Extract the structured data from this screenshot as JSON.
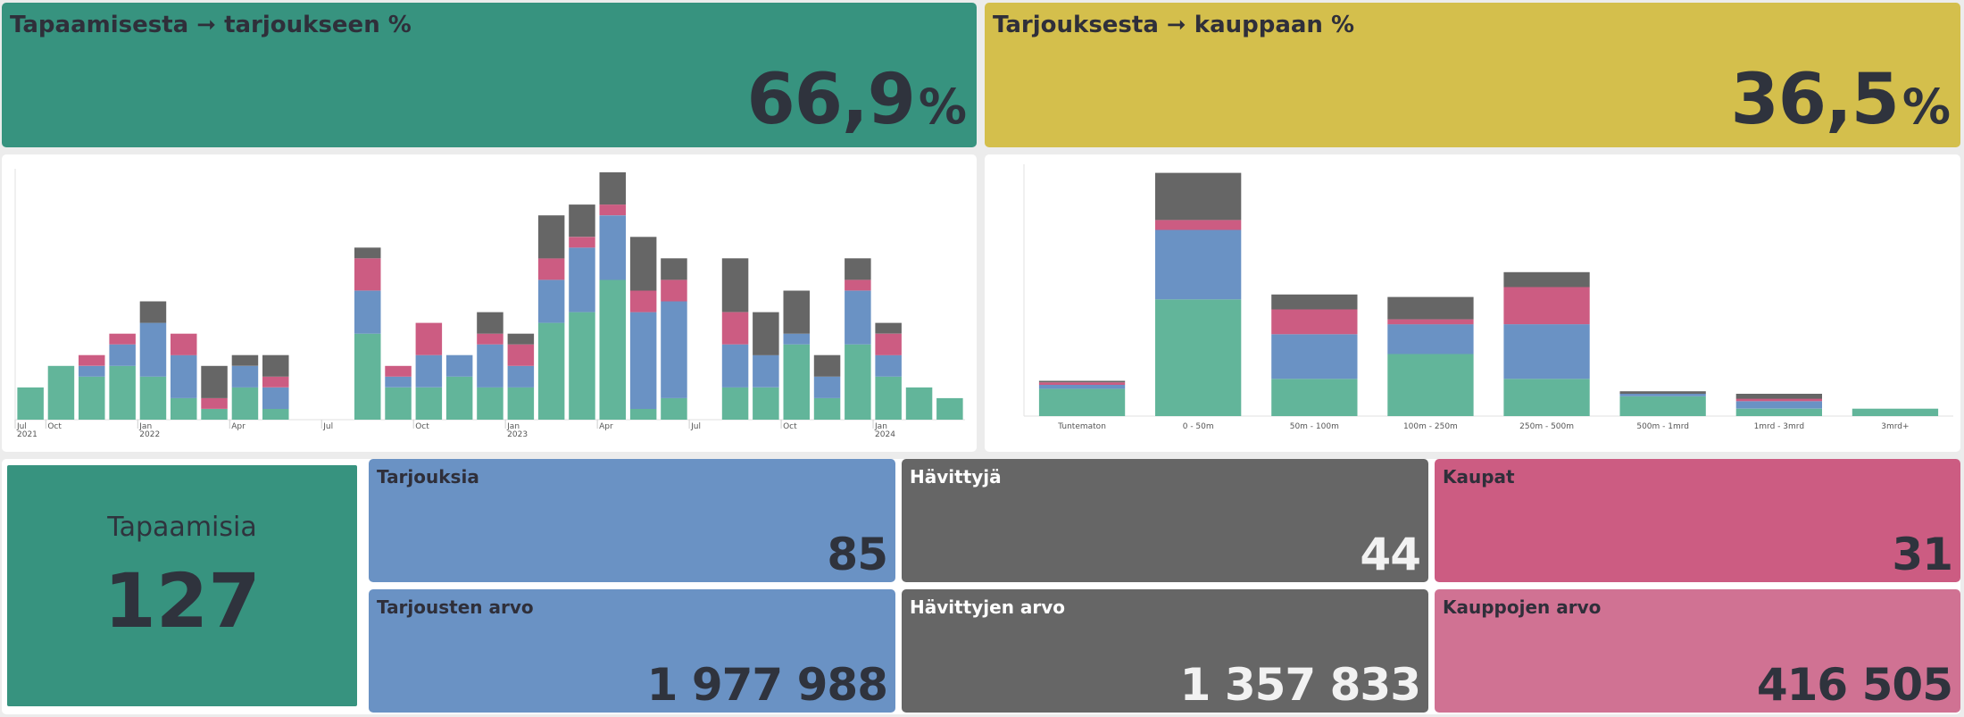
{
  "kpis": {
    "meeting_to_offer": {
      "title": "Tapaamisesta ➞ tarjoukseen %",
      "value": "66,9",
      "unit": "%",
      "color": "#37937f"
    },
    "offer_to_deal": {
      "title": "Tarjouksesta ➞ kauppaan %",
      "value": "36,5",
      "unit": "%",
      "color": "#d4bf4c"
    },
    "meetings": {
      "title": "Tapaamisia",
      "value": "127",
      "color": "#37937f"
    },
    "offers": {
      "title": "Tarjouksia",
      "value": "85",
      "color": "#6a92c4"
    },
    "lost": {
      "title": "Hävittyjä",
      "value": "44",
      "color": "#666666"
    },
    "deals": {
      "title": "Kaupat",
      "value": "31",
      "color": "#cc5c82"
    },
    "offers_value": {
      "title": "Tarjousten arvo",
      "value": "1 977 988",
      "color": "#6a92c4"
    },
    "lost_value": {
      "title": "Hävittyjen arvo",
      "value": "1 357 833",
      "color": "#666666"
    },
    "deals_value": {
      "title": "Kauppojen arvo",
      "value": "416 505",
      "color": "#d07293"
    }
  },
  "chart_data": [
    {
      "type": "bar",
      "stacked": true,
      "x_tick_labels": [
        {
          "label": "Jul",
          "sub": "2021",
          "at": 0
        },
        {
          "label": "Oct",
          "sub": "",
          "at": 1
        },
        {
          "label": "Jan",
          "sub": "2022",
          "at": 4
        },
        {
          "label": "Apr",
          "sub": "",
          "at": 7
        },
        {
          "label": "Jul",
          "sub": "",
          "at": 10
        },
        {
          "label": "Oct",
          "sub": "",
          "at": 13
        },
        {
          "label": "Jan",
          "sub": "2023",
          "at": 16
        },
        {
          "label": "Apr",
          "sub": "",
          "at": 19
        },
        {
          "label": "Jul",
          "sub": "",
          "at": 22
        },
        {
          "label": "Oct",
          "sub": "",
          "at": 25
        },
        {
          "label": "Jan",
          "sub": "2024",
          "at": 28
        }
      ],
      "colors": [
        "#62b59a",
        "#6a92c4",
        "#cc5c82",
        "#666666"
      ],
      "ylim": [
        0,
        23
      ],
      "series": [
        {
          "values": [
            3,
            5,
            4,
            5,
            4,
            2,
            1,
            3,
            1,
            0,
            0,
            8,
            3,
            3,
            4,
            3,
            3,
            9,
            10,
            13,
            1,
            2,
            0,
            3,
            3,
            7,
            2,
            7,
            4,
            3,
            2
          ]
        },
        {
          "values": [
            0,
            0,
            1,
            2,
            5,
            4,
            0,
            2,
            2,
            0,
            0,
            4,
            1,
            3,
            2,
            4,
            2,
            4,
            6,
            6,
            9,
            9,
            0,
            4,
            3,
            1,
            2,
            5,
            2,
            0,
            0
          ]
        },
        {
          "values": [
            0,
            0,
            1,
            1,
            0,
            2,
            1,
            0,
            1,
            0,
            0,
            3,
            1,
            3,
            0,
            1,
            2,
            2,
            1,
            1,
            2,
            2,
            0,
            3,
            0,
            0,
            0,
            1,
            2,
            0,
            0
          ]
        },
        {
          "values": [
            0,
            0,
            0,
            0,
            2,
            0,
            3,
            1,
            2,
            0,
            0,
            1,
            0,
            0,
            0,
            2,
            1,
            4,
            3,
            3,
            5,
            2,
            0,
            5,
            4,
            4,
            2,
            2,
            1,
            0,
            0
          ]
        }
      ]
    },
    {
      "type": "bar",
      "stacked": true,
      "categories": [
        "Tuntematon",
        "0 - 50m",
        "50m - 100m",
        "100m - 250m",
        "250m - 500m",
        "500m - 1mrd",
        "1mrd - 3mrd",
        "3mrd+"
      ],
      "colors": [
        "#62b59a",
        "#6a92c4",
        "#cc5c82",
        "#666666"
      ],
      "ylim": [
        0,
        50
      ],
      "series": [
        {
          "values": [
            5.5,
            23.5,
            7.5,
            12.5,
            7.5,
            4,
            1.5,
            1.5
          ]
        },
        {
          "values": [
            0.8,
            14,
            9,
            6,
            11,
            0.5,
            1.5,
            0
          ]
        },
        {
          "values": [
            0.5,
            2,
            5,
            1,
            7.5,
            0,
            0.5,
            0
          ]
        },
        {
          "values": [
            0.3,
            9.5,
            3,
            4.5,
            3,
            0.5,
            1,
            0
          ]
        }
      ]
    }
  ]
}
